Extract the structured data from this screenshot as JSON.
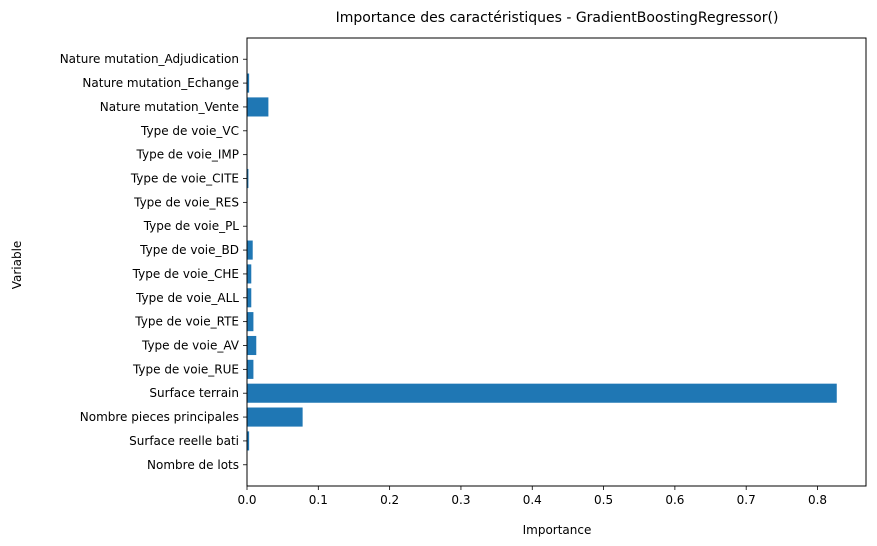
{
  "chart_data": {
    "type": "bar",
    "orientation": "horizontal",
    "title": "Importance des caractéristiques - GradientBoostingRegressor()",
    "xlabel": "Importance",
    "ylabel": "Variable",
    "xlim": [
      0,
      0.868
    ],
    "x_ticks": [
      "0.0",
      "0.1",
      "0.2",
      "0.3",
      "0.4",
      "0.5",
      "0.6",
      "0.7",
      "0.8"
    ],
    "categories": [
      "Nombre de lots",
      "Surface reelle bati",
      "Nombre pieces principales",
      "Surface terrain",
      "Type de voie_RUE",
      "Type de voie_AV",
      "Type de voie_RTE",
      "Type de voie_ALL",
      "Type de voie_CHE",
      "Type de voie_BD",
      "Type de voie_PL",
      "Type de voie_RES",
      "Type de voie_CITE",
      "Type de voie_IMP",
      "Type de voie_VC",
      "Nature mutation_Vente",
      "Nature mutation_Echange",
      "Nature mutation_Adjudication"
    ],
    "values": [
      0.0005,
      0.003,
      0.078,
      0.827,
      0.009,
      0.013,
      0.009,
      0.006,
      0.006,
      0.008,
      0.0005,
      0.0005,
      0.002,
      0.0005,
      0.0005,
      0.03,
      0.003,
      0.0003
    ],
    "bar_color": "#1f77b4",
    "grid": false,
    "legend": "none"
  }
}
